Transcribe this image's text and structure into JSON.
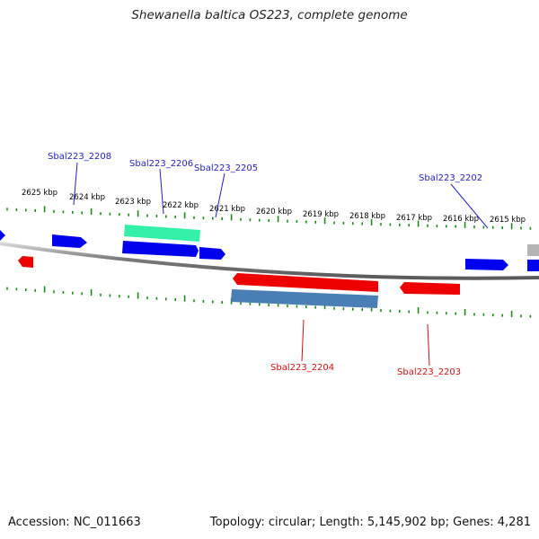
{
  "title": "Shewanella baltica OS223, complete genome",
  "footer": {
    "accession": "Accession: NC_011663",
    "summary": "Topology: circular; Length: 5,145,902 bp; Genes: 4,281"
  },
  "colors": {
    "forward_gene": "#0000ee",
    "reverse_gene": "#ee0000",
    "rna_gene": "#33f0a8",
    "reverse_cds_alt": "#4a7fb5",
    "unknown_gene": "#b4b4b4",
    "backbone": "#888888",
    "tick": "#1a8a1a",
    "label_forward": "#1f1fbf",
    "label_reverse": "#cc1111",
    "scale_label": "#000000"
  },
  "scale_labels": [
    "2625 kbp",
    "2624 kbp",
    "2623 kbp",
    "2622 kbp",
    "2621 kbp",
    "2620 kbp",
    "2619 kbp",
    "2618 kbp",
    "2617 kbp",
    "2616 kbp",
    "2615 kbp"
  ],
  "gene_labels": [
    {
      "text": "Sbal223_2208",
      "strand": "forward"
    },
    {
      "text": "Sbal223_2206",
      "strand": "forward"
    },
    {
      "text": "Sbal223_2205",
      "strand": "forward"
    },
    {
      "text": "Sbal223_2202",
      "strand": "forward"
    },
    {
      "text": "Sbal223_2204",
      "strand": "reverse"
    },
    {
      "text": "Sbal223_2203",
      "strand": "reverse"
    }
  ]
}
